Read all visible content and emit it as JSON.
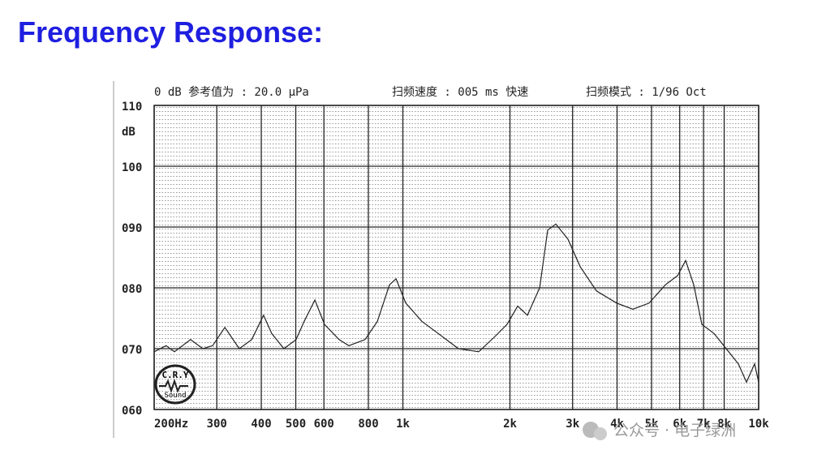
{
  "title": "Frequency Response:",
  "chart_data": {
    "type": "line",
    "header": [
      "0 dB 参考值为 : 20.0 μPa",
      "扫频速度 : 005 ms 快速",
      "扫频模式 : 1/96 Oct"
    ],
    "y_label": "dB",
    "xscale": "log",
    "grid": true,
    "color": "#222222",
    "x": [
      200,
      216,
      228,
      253,
      274,
      292,
      316,
      347,
      376,
      406,
      428,
      463,
      501,
      528,
      566,
      602,
      662,
      705,
      783,
      848,
      917,
      957,
      1019,
      1131,
      1257,
      1433,
      1634,
      1815,
      1963,
      2102,
      2239,
      2424,
      2553,
      2691,
      2912,
      3150,
      3500,
      3990,
      4432,
      4922,
      5467,
      5914,
      6234,
      6570,
      6925,
      7491,
      8107,
      8772,
      9244,
      9742,
      10000
    ],
    "values": [
      69.5,
      70.5,
      69.5,
      71.5,
      70,
      70.5,
      73.5,
      70,
      71.5,
      75.5,
      72.5,
      70,
      71.5,
      74.5,
      78,
      74,
      71.5,
      70.5,
      71.5,
      74.5,
      80.5,
      81.5,
      77.5,
      74.5,
      72.5,
      70,
      69.5,
      72,
      74,
      77,
      75.5,
      80,
      89.5,
      90.5,
      88,
      83.5,
      79.5,
      77.5,
      76.5,
      77.5,
      80.5,
      82,
      84.5,
      80.5,
      74,
      72.5,
      70,
      67.5,
      64.5,
      67.5,
      64.5
    ],
    "xlim": [
      200,
      10000
    ],
    "ylim": [
      60,
      110
    ],
    "xticks": [
      {
        "value": 200,
        "label": "200Hz"
      },
      300,
      400,
      500,
      600,
      800,
      {
        "value": 1000,
        "label": "1k"
      },
      {
        "value": 2000,
        "label": "2k"
      },
      {
        "value": 3000,
        "label": "3k"
      },
      {
        "value": 4000,
        "label": "4k"
      },
      {
        "value": 5000,
        "label": "5k"
      },
      {
        "value": 6000,
        "label": "6k"
      },
      {
        "value": 7000,
        "label": "7k"
      },
      {
        "value": 8000,
        "label": "8k"
      },
      {
        "value": 10000,
        "label": "10k"
      }
    ],
    "yticks": [
      {
        "value": 60,
        "label": "060"
      },
      {
        "value": 70,
        "label": "070"
      },
      {
        "value": 80,
        "label": "080"
      },
      {
        "value": 90,
        "label": "090"
      },
      100,
      110
    ]
  },
  "logo": {
    "top": "C.R.Y",
    "bottom": "Sound"
  },
  "watermark": "公众号 · 电子绿洲"
}
